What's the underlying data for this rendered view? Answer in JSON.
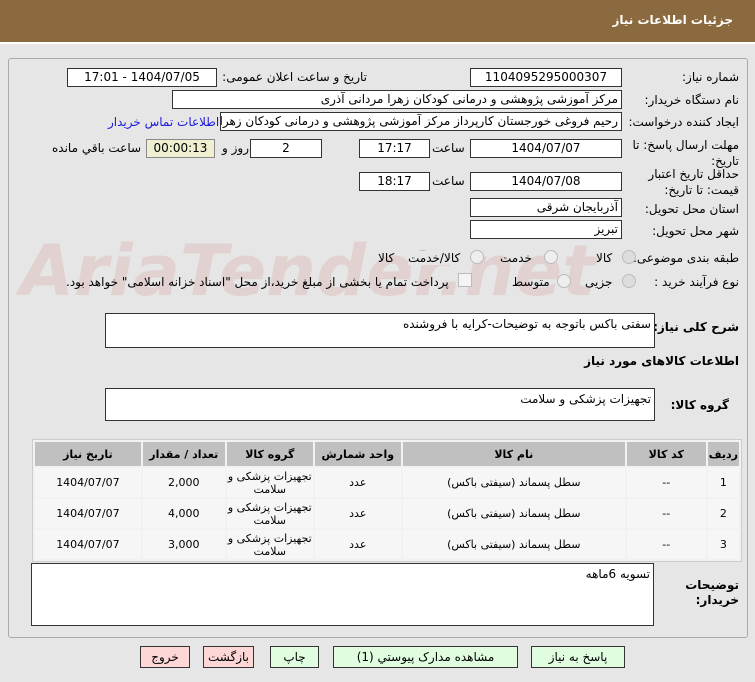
{
  "title": "جزئیات اطلاعات نیاز",
  "watermark": "AriaTender.net",
  "fields": {
    "need_number_label": "شماره نیاز:",
    "need_number": "1104095295000307",
    "announce_label": "تاریخ و ساعت اعلان عمومی:",
    "announce": "1404/07/05 - 17:01",
    "buyer_label": "نام دستگاه خریدار:",
    "buyer": "مرکز آموزشی پژوهشی و درمانی کودکان زهرا مردانی آذری",
    "creator_label": "ایجاد کننده درخواست:",
    "creator": "رحیم فروغی خورجستان کارپرداز مرکز آموزشی پژوهشی و درمانی کودکان زهرا مردانی آذری",
    "contact_link": "اطلاعات تماس خریدار",
    "deadline_label": "مهلت ارسال پاسخ: تا تاریخ:",
    "deadline_date": "1404/07/07",
    "time_label": "ساعت",
    "deadline_time": "17:17",
    "days": "2",
    "days_label": "روز و",
    "remaining": "00:00:13",
    "remaining_label": "ساعت باقي مانده",
    "validity_label": "حداقل تاریخ اعتبار قیمت: تا تاریخ:",
    "validity_date": "1404/07/08",
    "validity_time": "18:17",
    "province_label": "استان محل تحویل:",
    "province": "آذربایجان شرقی",
    "city_label": "شهر محل تحویل:",
    "city": "تبریز",
    "category_label": "طبقه بندی موضوعی:",
    "cat_options": [
      "کالا",
      "خدمت",
      "کالا/خدمت"
    ],
    "process_label": "نوع فرآیند خرید :",
    "process_options": [
      "جزیی",
      "متوسط"
    ],
    "payment_note": "پرداخت تمام یا بخشی از مبلغ خرید،از محل \"اسناد خزانه اسلامی\" خواهد بود."
  },
  "description_label": "شرح کلی نیاز:",
  "description": "سفتی باکس باتوجه به توضیحات-کرایه با فروشنده",
  "items_heading": "اطلاعات کالاهای مورد نیاز",
  "group_label": "گروه کالا:",
  "group": "تجهیزات پزشکی و سلامت",
  "table": {
    "headers": [
      "ردیف",
      "کد کالا",
      "نام کالا",
      "واحد شمارش",
      "گروه کالا",
      "تعداد / مقدار",
      "تاریخ نیاز"
    ],
    "rows": [
      [
        "1",
        "--",
        "سطل پسماند (سیفتی باکس)",
        "عدد",
        "تجهیزات پزشکی و سلامت",
        "2,000",
        "1404/07/07"
      ],
      [
        "2",
        "--",
        "سطل پسماند (سیفتی باکس)",
        "عدد",
        "تجهیزات پزشکی و سلامت",
        "4,000",
        "1404/07/07"
      ],
      [
        "3",
        "--",
        "سطل پسماند (سیفتی باکس)",
        "عدد",
        "تجهیزات پزشکی و سلامت",
        "3,000",
        "1404/07/07"
      ]
    ]
  },
  "notes_label": "توضیحات خریدار:",
  "notes": "تسویه 6ماهه",
  "buttons": {
    "reply": "پاسخ به نیاز",
    "docs": "مشاهده مدارک پیوستي (1)",
    "print": "چاپ",
    "back": "بازگشت",
    "exit": "خروج"
  }
}
